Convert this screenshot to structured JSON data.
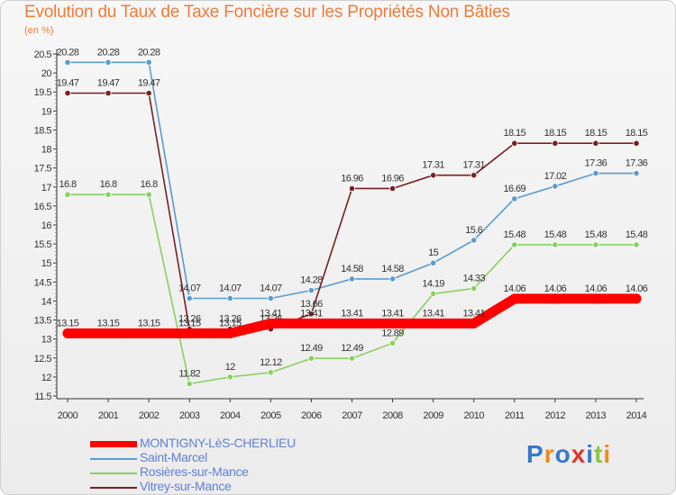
{
  "chart_data": {
    "type": "line",
    "title": "Evolution du Taux de Taxe Foncière sur les Propriétés Non Bâties",
    "unit_label": "(en %)",
    "x": [
      "2000",
      "2001",
      "2002",
      "2003",
      "2004",
      "2005",
      "2006",
      "2007",
      "2008",
      "2009",
      "2010",
      "2011",
      "2012",
      "2013",
      "2014"
    ],
    "ylim": [
      11.5,
      20.5
    ],
    "yticks": [
      "11.5",
      "12",
      "12.5",
      "13",
      "13.5",
      "14",
      "14.5",
      "15",
      "15.5",
      "16",
      "16.5",
      "17",
      "17.5",
      "18",
      "18.5",
      "19",
      "19.5",
      "20",
      "20.5"
    ],
    "grid": false,
    "legend_position": "bottom-left",
    "series": [
      {
        "name": "Saint-Marcel",
        "color": "#5a9bd0",
        "values": [
          20.28,
          20.28,
          20.28,
          14.07,
          14.07,
          14.07,
          14.28,
          14.58,
          14.58,
          15,
          15.6,
          16.69,
          17.02,
          17.36,
          17.36
        ],
        "labels": [
          "20.28",
          "20.28",
          "20.28",
          "14.07",
          "14.07",
          "14.07",
          "14.28",
          "14.58",
          "14.58",
          "15",
          "15.6",
          "16.69",
          "17.02",
          "17.36",
          "17.36"
        ]
      },
      {
        "name": "Rosières-sur-Mance",
        "color": "#88d060",
        "values": [
          16.8,
          16.8,
          16.8,
          11.82,
          12,
          12.12,
          12.49,
          12.49,
          12.89,
          14.19,
          14.33,
          15.48,
          15.48,
          15.48,
          15.48
        ],
        "labels": [
          "16.8",
          "16.8",
          "16.8",
          "11.82",
          "12",
          "12.12",
          "12.49",
          "12.49",
          "12.89",
          "14.19",
          "14.33",
          "15.48",
          "15.48",
          "15.48",
          "15.48"
        ]
      },
      {
        "name": "Vitrey-sur-Mance",
        "color": "#7a1f22",
        "values": [
          19.47,
          19.47,
          19.47,
          13.26,
          13.26,
          13.26,
          13.66,
          16.96,
          16.96,
          17.31,
          17.31,
          18.15,
          18.15,
          18.15,
          18.15
        ],
        "labels": [
          "19.47",
          "19.47",
          "19.47",
          "13.26",
          "13.26",
          "13.26",
          "13.66",
          "16.96",
          "16.96",
          "17.31",
          "17.31",
          "18.15",
          "18.15",
          "18.15",
          "18.15"
        ]
      },
      {
        "name": "MONTIGNY-LèS-CHERLIEU",
        "color": "#ff0000",
        "values": [
          13.15,
          13.15,
          13.15,
          13.15,
          13.15,
          13.41,
          13.41,
          13.41,
          13.41,
          13.41,
          13.41,
          14.06,
          14.06,
          14.06,
          14.06
        ],
        "labels": [
          "13.15",
          "13.15",
          "13.15",
          "13.15",
          "13.15",
          "13.41",
          "13.41",
          "13.41",
          "13.41",
          "13.41",
          "13.41",
          "14.06",
          "14.06",
          "14.06",
          "14.06"
        ]
      }
    ]
  },
  "legend": [
    {
      "label": "MONTIGNY-LèS-CHERLIEU",
      "color": "#ff0000"
    },
    {
      "label": "Saint-Marcel",
      "color": "#5a9bd0"
    },
    {
      "label": "Rosières-sur-Mance",
      "color": "#88d060"
    },
    {
      "label": "Vitrey-sur-Mance",
      "color": "#7a1f22"
    }
  ],
  "logo": {
    "letters": [
      "P",
      "r",
      "o",
      "x",
      "i",
      "t",
      "i"
    ],
    "colors": [
      "#3a78c8",
      "#f08a1c",
      "#3a78c8",
      "#e0352b",
      "#3a78c8",
      "#8bc43f",
      "#f08a1c"
    ]
  }
}
